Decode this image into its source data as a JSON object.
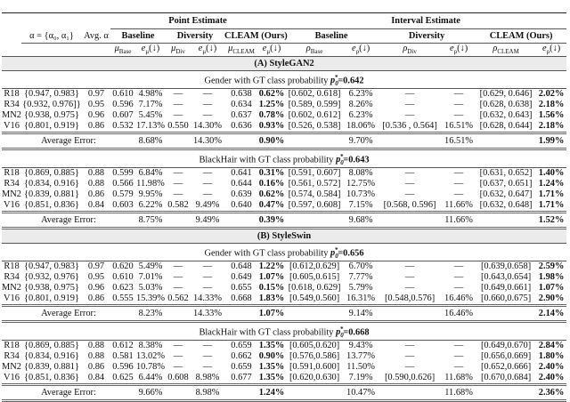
{
  "header": {
    "point_estimate": "Point Estimate",
    "interval_estimate": "Interval Estimate",
    "alpha": "α = {α₀, α₁}",
    "avg_alpha": "Avg. α",
    "baseline": "Baseline",
    "diversity": "Diversity",
    "cleam": "CLEAM (Ours)",
    "mu": "μ",
    "rho": "ρ",
    "e": "e",
    "down": "(↓)",
    "sub_base": "Base",
    "sub_div": "Div",
    "sub_cleam": "CLEAM",
    "sub_mu": "μ",
    "sub_rho": "ρ"
  },
  "avg_label": "Average Error:",
  "p_symbol": "p",
  "p_sub": "0",
  "p_sup": "*",
  "sections": [
    {
      "title": "(A) StyleGAN2",
      "groups": [
        {
          "prefix": "Gender with GT class probability ",
          "p_value": "=0.642",
          "rows": [
            [
              "R18",
              "{0.947, 0.983}",
              "0.97",
              "0.610",
              "4.98%",
              "—",
              "—",
              "0.638",
              "0.62%",
              "[0.602, 0.618]",
              "6.23%",
              "—",
              "—",
              "[0.629, 0.646]",
              "2.02%"
            ],
            [
              "R34",
              "{0.932, 0.976]}",
              "0.95",
              "0.596",
              "7.17%",
              "—",
              "—",
              "0.634",
              "1.25%",
              "[0.589, 0.599]",
              "8.26%",
              "—",
              "—",
              "[0.628, 0.638]",
              "2.18%"
            ],
            [
              "MN2",
              "{0.938, 0.975}",
              "0.96",
              "0.607",
              "5.45%",
              "—",
              "—",
              "0.637",
              "0.78%",
              "[0.602, 0.612]",
              "6.23%",
              "—",
              "—",
              "[0.632, 0.643]",
              "1.56%"
            ],
            [
              "V16",
              "{0.801, 0.919}",
              "0.86",
              "0.532",
              "17.13%",
              "0.550",
              "14.30%",
              "0.636",
              "0.93%",
              "[0.526, 0.538]",
              "18.06%",
              "[0.536 , 0.564]",
              "16.51%",
              "[0.628, 0.644]",
              "2.18%"
            ]
          ],
          "average": [
            "8.68%",
            "14.30%",
            "0.90%",
            "9.70%",
            "16.51%",
            "1.99%"
          ]
        },
        {
          "prefix": "BlackHair with GT class probability ",
          "p_value": "=0.643",
          "rows": [
            [
              "R18",
              "{0.869, 0.885}",
              "0.88",
              "0.599",
              "6.84%",
              "—",
              "—",
              "0.641",
              "0.31%",
              "[0.591, 0.607]",
              "8.08%",
              "—",
              "—",
              "[0.631, 0.652]",
              "1.40%"
            ],
            [
              "R34",
              "{0.834, 0.916}",
              "0.88",
              "0.566",
              "11.98%",
              "—",
              "—",
              "0.644",
              "0.16%",
              "[0.561, 0.572]",
              "12.75%",
              "—",
              "—",
              "[0.637, 0.651]",
              "1.24%"
            ],
            [
              "MN2",
              "{0.839, 0.881}",
              "0.86",
              "0.579",
              "9.95%",
              "—",
              "—",
              "0.639",
              "0.62%",
              "[0.574, 0.584]",
              "10.73%",
              "—",
              "—",
              "[0.632, 0.647]",
              "1.71%"
            ],
            [
              "V16",
              "{0.851, 0.836}",
              "0.84",
              "0.603",
              "6.22%",
              "0.582",
              "9.49%",
              "0.640",
              "0.47%",
              "[0.597, 0.608]",
              "7.15%",
              "[0.568, 0.596]",
              "11.66%",
              "[0.632, 0.648]",
              "1.71%"
            ]
          ],
          "average": [
            "8.75%",
            "9.49%",
            "0.39%",
            "9.68%",
            "11.66%",
            "1.52%"
          ]
        }
      ]
    },
    {
      "title": "(B) StyleSwin",
      "groups": [
        {
          "prefix": "Gender with GT class probability ",
          "p_value": "=0.656",
          "rows": [
            [
              "R18",
              "{0.947, 0.983}",
              "0.97",
              "0.620",
              "5.49%",
              "—",
              "—",
              "0.648",
              "1.22%",
              "[0.612,0.629]",
              "6.70%",
              "—",
              "—",
              "[0.639,0.658]",
              "2.59%"
            ],
            [
              "R34",
              "{0.932, 0.976}",
              "0.95",
              "0.610",
              "7.01%",
              "—",
              "—",
              "0.649",
              "1.07%",
              "[0.605,0.615]",
              "7.77%",
              "—",
              "—",
              "[0.643,0.654]",
              "1.98%"
            ],
            [
              "MN2",
              "{0.938, 0.975}",
              "0.96",
              "0.623",
              "5.03%",
              "—",
              "—",
              "0.655",
              "0.15%",
              "[0.618, 0.629]",
              "5.79%",
              "—",
              "—",
              "[0.649,0.661]",
              "1.07%"
            ],
            [
              "V16",
              "{0.801, 0.919}",
              "0.86",
              "0.555",
              "15.39%",
              "0.562",
              "14.33%",
              "0.668",
              "1.83%",
              "[0.549,0.560]",
              "16.31%",
              "[0.548,0.576]",
              "16.46%",
              "[0.660,0.675]",
              "2.90%"
            ]
          ],
          "average": [
            "8.23%",
            "14.33%",
            "1.07%",
            "9.14%",
            "16.46%",
            "2.14%"
          ]
        },
        {
          "prefix": "BlackHair with GT class probability ",
          "p_value": "=0.668",
          "rows": [
            [
              "R18",
              "{0.869, 0.885}",
              "0.88",
              "0.612",
              "8.38%",
              "—",
              "—",
              "0.659",
              "1.35%",
              "[0.605,0.620]",
              "9.43%",
              "—",
              "—",
              "[0.649,0.670]",
              "2.84%"
            ],
            [
              "R34",
              "{0.834, 0.916}",
              "0.88",
              "0.581",
              "13.02%",
              "—",
              "—",
              "0.662",
              "0.90%",
              "[0.576,0.586]",
              "13.77%",
              "—",
              "—",
              "[0.656,0.669]",
              "1.80%"
            ],
            [
              "MN2",
              "{0.839, 0.881}",
              "0.86",
              "0.596",
              "10.78%",
              "—",
              "—",
              "0.659",
              "1.35%",
              "[0.591,0.600]",
              "11.50%",
              "—",
              "—",
              "[0.652,0.666]",
              "2.40%"
            ],
            [
              "V16",
              "{0.851, 0.836}",
              "0.84",
              "0.625",
              "6.44%",
              "0.608",
              "8.98%",
              "0.677",
              "1.35%",
              "[0.620,0.630]",
              "7.19%",
              "[0.590,0.626]",
              "11.68%",
              "[0.670,0.684]",
              "2.40%"
            ]
          ],
          "average": [
            "9.66%",
            "8.98%",
            "1.24%",
            "10.47%",
            "11.68%",
            "2.36%"
          ]
        }
      ]
    }
  ]
}
